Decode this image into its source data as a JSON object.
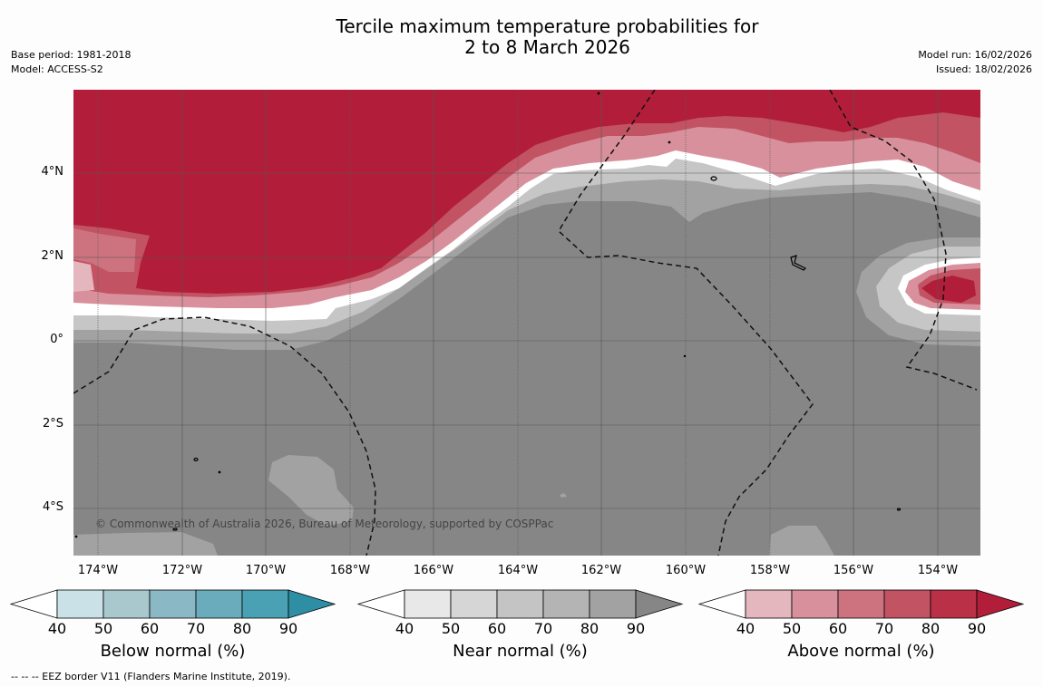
{
  "title": {
    "line1": "Tercile maximum temperature probabilities for",
    "line2": "2 to 8 March 2026"
  },
  "meta_left": {
    "base_period": "Base period: 1981-2018",
    "model": "Model: ACCESS-S2"
  },
  "meta_right": {
    "model_run": "Model run: 16/02/2026",
    "issued": "Issued: 18/02/2026"
  },
  "credit": "© Commonwealth of Australia 2026, Bureau of Meteorology, supported by COSPPac",
  "footnote": "--  --  -- EEZ border V11 (Flanders Marine Institute, 2019).",
  "map": {
    "lon_labels": [
      "174°W",
      "172°W",
      "170°W",
      "168°W",
      "166°W",
      "164°W",
      "162°W",
      "160°W",
      "158°W",
      "156°W",
      "154°W"
    ],
    "lat_labels": [
      "4°N",
      "2°N",
      "0°",
      "2°S",
      "4°S"
    ],
    "colors": {
      "above_90": "#b21e3a",
      "near_90": "#868686",
      "near_80": "#a2a2a2",
      "white_band": "#ffffff",
      "grid": "#555555"
    }
  },
  "colorbars": [
    {
      "title": "Below normal (%)",
      "ticks": [
        "40",
        "50",
        "60",
        "70",
        "80",
        "90"
      ],
      "colors": [
        "#ffffff",
        "#c9e1e7",
        "#a8c8ce",
        "#8bb8c5",
        "#6aacbb",
        "#4ba1b4",
        "#2e8ea3"
      ]
    },
    {
      "title": "Near normal (%)",
      "ticks": [
        "40",
        "50",
        "60",
        "70",
        "80",
        "90"
      ],
      "colors": [
        "#ffffff",
        "#e8e8e8",
        "#d6d6d6",
        "#c4c4c4",
        "#b4b4b4",
        "#a2a2a2",
        "#868686"
      ]
    },
    {
      "title": "Above normal (%)",
      "ticks": [
        "40",
        "50",
        "60",
        "70",
        "80",
        "90"
      ],
      "colors": [
        "#ffffff",
        "#e4b6bd",
        "#d8919c",
        "#cc737f",
        "#c25363",
        "#ba3047",
        "#b21e3a"
      ]
    }
  ]
}
